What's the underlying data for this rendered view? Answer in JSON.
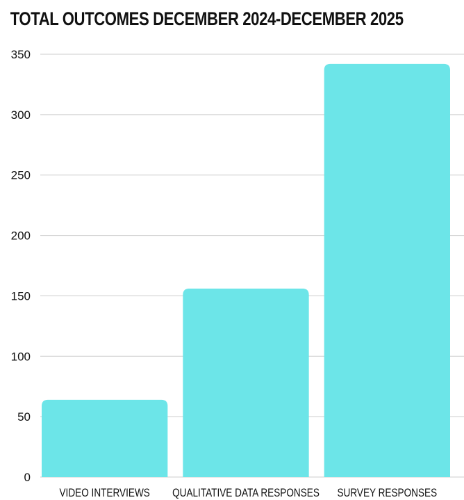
{
  "chart_data": {
    "type": "bar",
    "title": "TOTAL OUTCOMES DECEMBER 2024-DECEMBER 2025",
    "categories": [
      "VIDEO INTERVIEWS",
      "QUALITATIVE DATA RESPONSES",
      "SURVEY RESPONSES"
    ],
    "values": [
      64,
      156,
      342
    ],
    "ylim": [
      0,
      350
    ],
    "yticks": [
      0,
      50,
      100,
      150,
      200,
      250,
      300,
      350
    ],
    "xlabel": "",
    "ylabel": "",
    "grid": true,
    "legend": "none",
    "bar_color": "#6ce5e8",
    "grid_color": "#cccccc"
  }
}
